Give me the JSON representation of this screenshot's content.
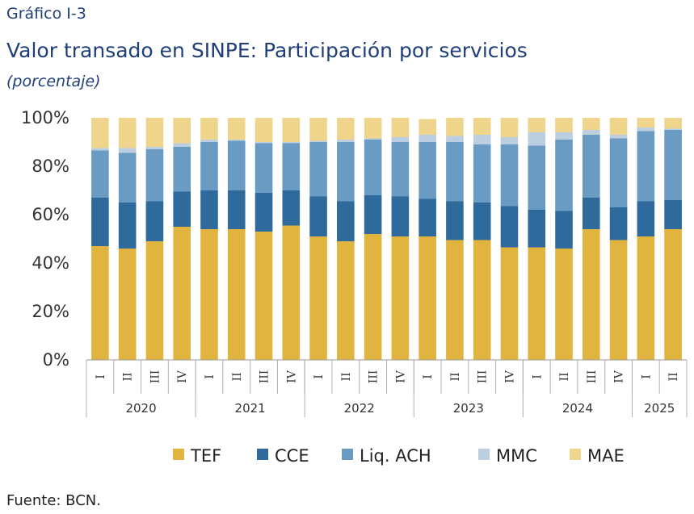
{
  "header": {
    "label": "Gráfico I-3",
    "title": "Valor transado en SINPE: Participación por servicios",
    "subtitle": "(porcentaje)"
  },
  "footer": {
    "source": "Fuente: BCN."
  },
  "colors": {
    "TEF": "#e0b43f",
    "CCE": "#2e6a9c",
    "Liq. ACH": "#6a9bc3",
    "MMC": "#bccfe0",
    "MAE": "#efd48c"
  },
  "chart_data": {
    "type": "bar",
    "stacked": true,
    "ylim": [
      0,
      100
    ],
    "yticks": [
      "0%",
      "20%",
      "40%",
      "60%",
      "80%",
      "100%"
    ],
    "grid": false,
    "legend_position": "bottom",
    "years": [
      {
        "label": "2020",
        "count": 4
      },
      {
        "label": "2021",
        "count": 4
      },
      {
        "label": "2022",
        "count": 4
      },
      {
        "label": "2023",
        "count": 4
      },
      {
        "label": "2024",
        "count": 4
      },
      {
        "label": "2025",
        "count": 2
      }
    ],
    "categories": [
      "I",
      "II",
      "III",
      "IV",
      "I",
      "II",
      "III",
      "IV",
      "I",
      "II",
      "III",
      "IV",
      "I",
      "II",
      "III",
      "IV",
      "I",
      "II",
      "III",
      "IV",
      "I",
      "II"
    ],
    "series": [
      {
        "name": "TEF",
        "values": [
          47,
          46,
          49,
          55,
          54,
          54,
          53,
          55.5,
          51,
          49,
          52,
          51,
          51,
          49.5,
          49.5,
          46.5,
          46.5,
          46,
          54,
          49.5,
          51,
          54
        ]
      },
      {
        "name": "CCE",
        "values": [
          20,
          19,
          16.5,
          14.5,
          16,
          16,
          16,
          14.5,
          16.5,
          16.5,
          16,
          16.5,
          15.5,
          16,
          15.5,
          17,
          15.5,
          15.5,
          13,
          13.5,
          14.5,
          12
        ]
      },
      {
        "name": "Liq. ACH",
        "values": [
          19.5,
          20.5,
          21.5,
          18.5,
          20,
          20.5,
          20.5,
          19.5,
          22.5,
          24.5,
          23,
          22.5,
          23.5,
          24.5,
          24,
          25.5,
          26.5,
          29.5,
          26,
          28.5,
          29,
          29
        ]
      },
      {
        "name": "MMC",
        "values": [
          1,
          2,
          1,
          1.5,
          1,
          0.5,
          0.5,
          0.5,
          0.5,
          1,
          0.5,
          2,
          3,
          2.5,
          4,
          3,
          5.5,
          3,
          2,
          1.5,
          1.5,
          0.5
        ]
      },
      {
        "name": "MAE",
        "values": [
          12.5,
          12.5,
          12,
          10.5,
          9,
          9,
          10,
          10,
          9.5,
          9,
          8.5,
          8,
          6.5,
          7.5,
          7,
          8,
          6,
          6,
          5,
          7,
          4,
          4.5
        ]
      }
    ]
  }
}
